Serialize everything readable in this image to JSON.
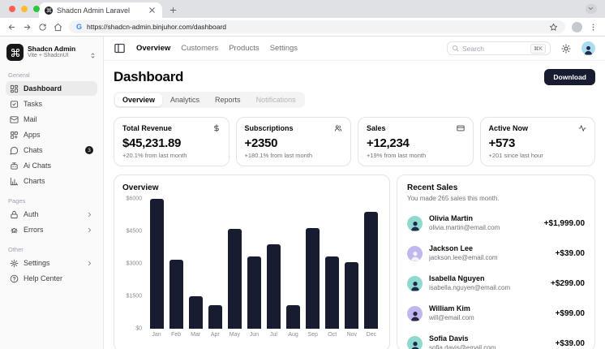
{
  "browser": {
    "tab_title": "Shadcn Admin Laravel",
    "url": "https://shadcn-admin.binjuhor.com/dashboard"
  },
  "sidebar": {
    "app_name": "Shadcn Admin",
    "app_subtitle": "Vite + ShadcnUI",
    "sections": [
      {
        "label": "General",
        "items": [
          {
            "label": "Dashboard",
            "icon": "layout-dashboard",
            "active": true
          },
          {
            "label": "Tasks",
            "icon": "checklist"
          },
          {
            "label": "Mail",
            "icon": "mail"
          },
          {
            "label": "Apps",
            "icon": "apps"
          },
          {
            "label": "Chats",
            "icon": "message",
            "badge": "3"
          },
          {
            "label": "Ai Chats",
            "icon": "bot"
          },
          {
            "label": "Charts",
            "icon": "bar-chart"
          }
        ]
      },
      {
        "label": "Pages",
        "items": [
          {
            "label": "Auth",
            "icon": "lock",
            "chevron": true
          },
          {
            "label": "Errors",
            "icon": "bug",
            "chevron": true
          }
        ]
      },
      {
        "label": "Other",
        "items": [
          {
            "label": "Settings",
            "icon": "gear",
            "chevron": true
          },
          {
            "label": "Help Center",
            "icon": "help"
          }
        ]
      }
    ]
  },
  "topnav": {
    "links": [
      "Overview",
      "Customers",
      "Products",
      "Settings"
    ],
    "active_link": "Overview",
    "search_placeholder": "Search",
    "search_shortcut": "⌘K"
  },
  "page": {
    "title": "Dashboard",
    "download_label": "Download",
    "tabs": [
      "Overview",
      "Analytics",
      "Reports",
      "Notifications"
    ],
    "active_tab": "Overview",
    "disabled_tab": "Notifications"
  },
  "stats": [
    {
      "title": "Total Revenue",
      "icon": "dollar",
      "value": "$45,231.89",
      "change": "+20.1% from last month"
    },
    {
      "title": "Subscriptions",
      "icon": "users",
      "value": "+2350",
      "change": "+180.1% from last month"
    },
    {
      "title": "Sales",
      "icon": "credit-card",
      "value": "+12,234",
      "change": "+19% from last month"
    },
    {
      "title": "Active Now",
      "icon": "activity",
      "value": "+573",
      "change": "+201 since last hour"
    }
  ],
  "chart_data": {
    "type": "bar",
    "title": "Overview",
    "categories": [
      "Jan",
      "Feb",
      "Mar",
      "Apr",
      "May",
      "Jun",
      "Jul",
      "Aug",
      "Sep",
      "Oct",
      "Nov",
      "Dec"
    ],
    "values": [
      6000,
      3200,
      1500,
      1100,
      4600,
      3350,
      3900,
      1100,
      4650,
      3350,
      3080,
      5400
    ],
    "xlabel": "",
    "ylabel": "",
    "ylim": [
      0,
      6000
    ],
    "yticks": [
      {
        "label": "$6000",
        "value": 6000
      },
      {
        "label": "$4500",
        "value": 4500
      },
      {
        "label": "$3000",
        "value": 3000
      },
      {
        "label": "$1500",
        "value": 1500
      },
      {
        "label": "$0",
        "value": 0
      }
    ],
    "grid": false,
    "legend": false,
    "bar_color": "#171c30"
  },
  "recent_sales": {
    "title": "Recent Sales",
    "subtitle": "You made 265 sales this month.",
    "items": [
      {
        "name": "Olivia Martin",
        "email": "olivia.martin@email.com",
        "amount": "+$1,999.00",
        "avatar_bg": "#8fd9cf",
        "avatar_fg": "#1e2a4a"
      },
      {
        "name": "Jackson Lee",
        "email": "jackson.lee@email.com",
        "amount": "+$39.00",
        "avatar_bg": "#c0b7ef",
        "avatar_fg": "#f4f1ff"
      },
      {
        "name": "Isabella Nguyen",
        "email": "isabella.nguyen@email.com",
        "amount": "+$299.00",
        "avatar_bg": "#8fd9cf",
        "avatar_fg": "#1e2a4a"
      },
      {
        "name": "William Kim",
        "email": "will@email.com",
        "amount": "+$99.00",
        "avatar_bg": "#c0b7ef",
        "avatar_fg": "#2a2440"
      },
      {
        "name": "Sofia Davis",
        "email": "sofia.davis@email.com",
        "amount": "+$39.00",
        "avatar_bg": "#8fd9cf",
        "avatar_fg": "#1e2a4a"
      }
    ]
  },
  "colors": {
    "accent_dark": "#171c30",
    "sidebar_bg": "#fafafa",
    "badge_bg": "#18181b",
    "muted_text": "#71717a"
  }
}
